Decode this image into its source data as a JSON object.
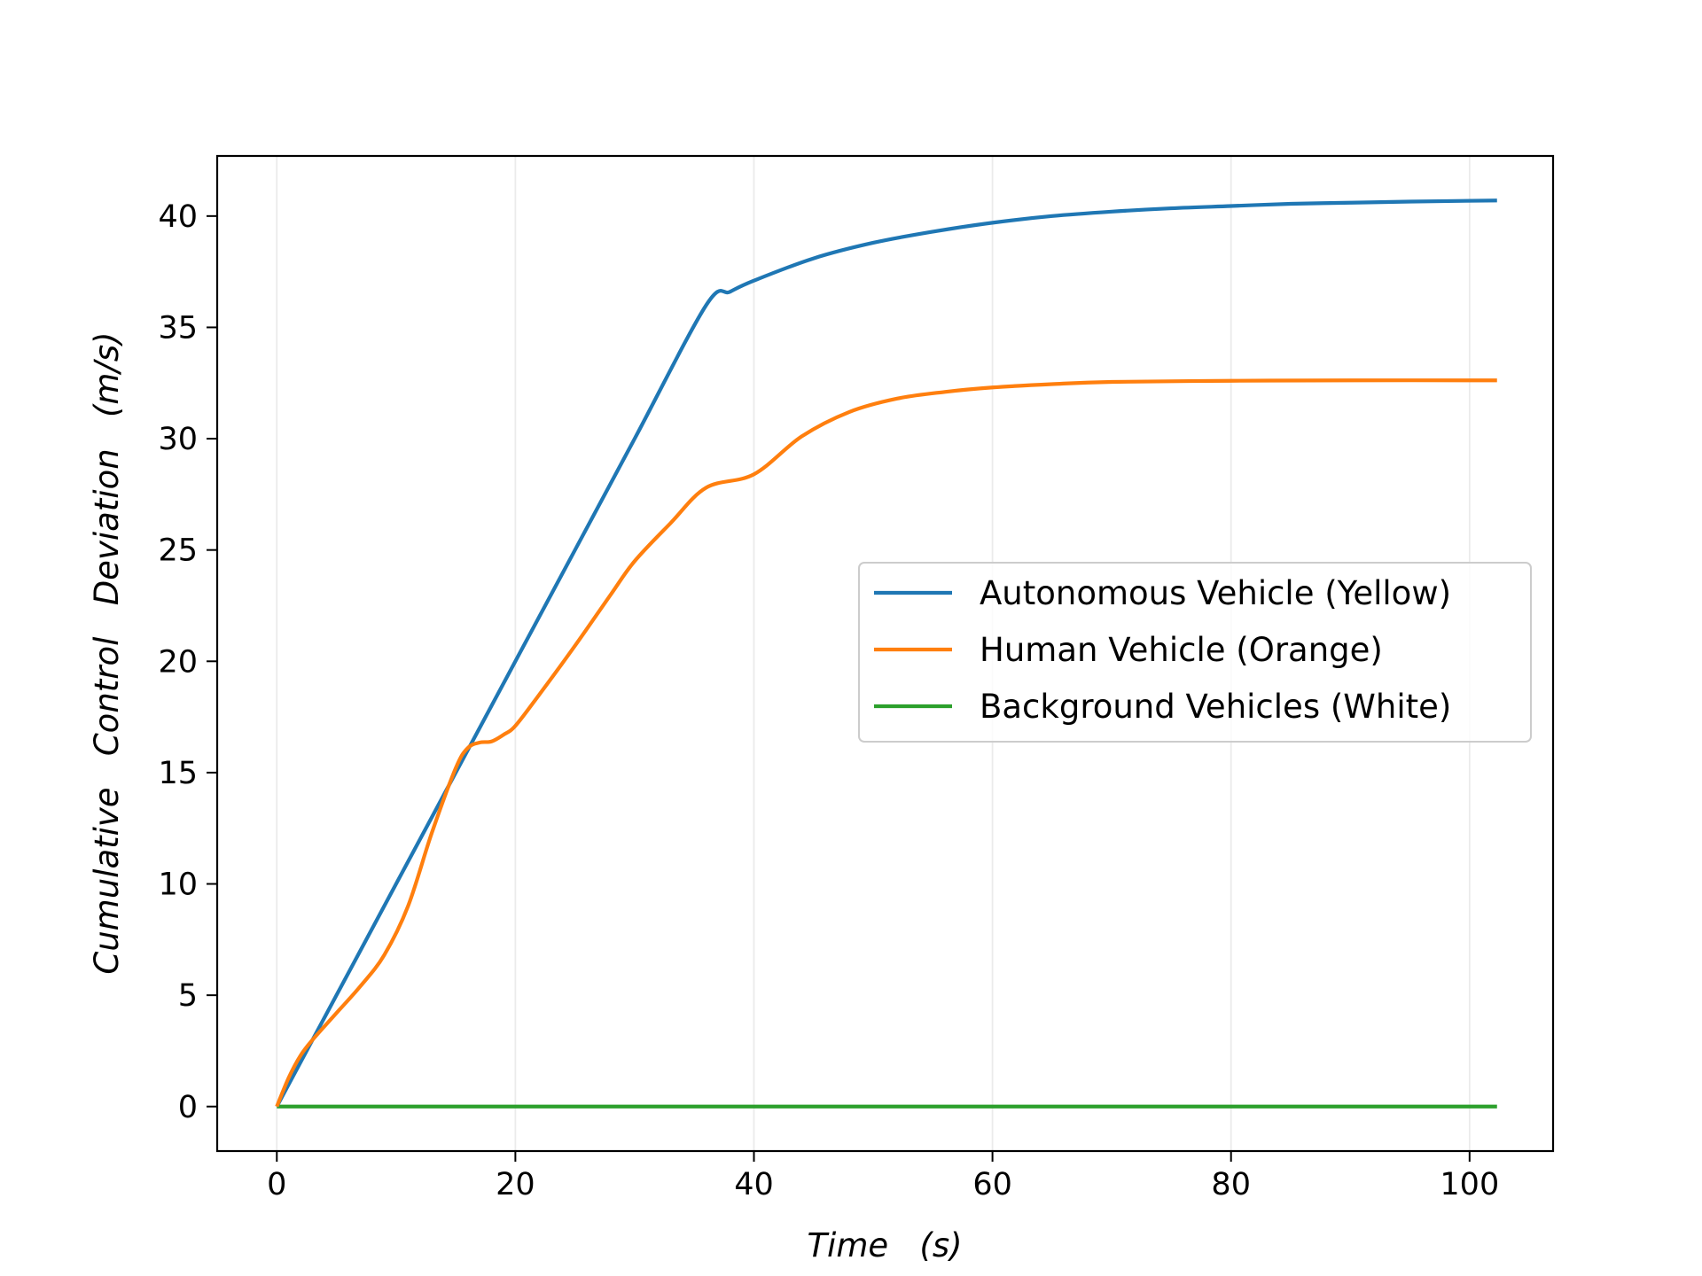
{
  "chart_data": {
    "type": "line",
    "title": "",
    "xlabel": "Time   (s)",
    "ylabel": "Cumulative   Control   Deviation   (m/s)",
    "xlim": [
      -5,
      107
    ],
    "ylim": [
      -2.0,
      42.7
    ],
    "xticks": [
      0,
      20,
      40,
      60,
      80,
      100
    ],
    "yticks": [
      0,
      5,
      10,
      15,
      20,
      25,
      30,
      35,
      40
    ],
    "grid": "vertical",
    "legend_position": "center-right",
    "series": [
      {
        "name": "Autonomous Vehicle (Yellow)",
        "color": "#1f77b4",
        "x": [
          0,
          5,
          10,
          15,
          20,
          25,
          30,
          36,
          38,
          40,
          45,
          50,
          55,
          60,
          65,
          70,
          75,
          80,
          85,
          90,
          95,
          102.3
        ],
        "y": [
          0,
          5.0,
          10.0,
          15.0,
          20.0,
          25.0,
          30.0,
          36.0,
          36.6,
          37.1,
          38.1,
          38.8,
          39.3,
          39.7,
          40.0,
          40.2,
          40.35,
          40.45,
          40.55,
          40.6,
          40.65,
          40.7
        ]
      },
      {
        "name": "Human Vehicle (Orange)",
        "color": "#ff7f0e",
        "x": [
          0,
          1,
          2,
          3,
          5,
          7,
          9,
          11,
          13,
          15,
          16,
          17,
          18,
          19,
          20,
          22,
          25,
          28,
          30,
          33,
          36,
          40,
          44,
          48,
          52,
          56,
          60,
          65,
          70,
          80,
          90,
          102.3
        ],
        "y": [
          0,
          1.3,
          2.3,
          3.0,
          4.2,
          5.4,
          6.8,
          9.0,
          12.3,
          15.2,
          16.1,
          16.35,
          16.4,
          16.7,
          17.1,
          18.5,
          20.7,
          23.0,
          24.5,
          26.2,
          27.8,
          28.4,
          30.1,
          31.2,
          31.8,
          32.1,
          32.3,
          32.45,
          32.55,
          32.6,
          32.62,
          32.62
        ]
      },
      {
        "name": "Background Vehicles (White)",
        "color": "#2ca02c",
        "x": [
          0,
          102.3
        ],
        "y": [
          0,
          0
        ]
      }
    ]
  }
}
